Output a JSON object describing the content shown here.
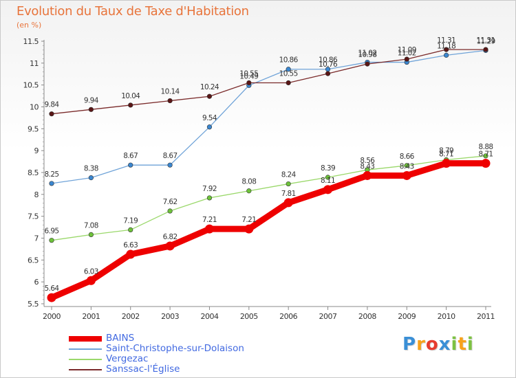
{
  "title": "Evolution du Taux de Taxe d'Habitation",
  "subtitle": "(en %)",
  "logo": {
    "text": "Proxiti",
    "letters": [
      {
        "ch": "P",
        "color": "#3a8fd6"
      },
      {
        "ch": "r",
        "color": "#f7a21b"
      },
      {
        "ch": "o",
        "color": "#e63c2f"
      },
      {
        "ch": "x",
        "color": "#3a8fd6"
      },
      {
        "ch": "i",
        "color": "#7dc242"
      },
      {
        "ch": "t",
        "color": "#f7a21b"
      },
      {
        "ch": "i",
        "color": "#7dc242"
      }
    ]
  },
  "chart_data": {
    "type": "line",
    "title": "Evolution du Taux de Taxe d'Habitation",
    "subtitle": "(en %)",
    "x": [
      "2000",
      "2001",
      "2002",
      "2003",
      "2004",
      "2005",
      "2006",
      "2007",
      "2008",
      "2009",
      "2010",
      "2011"
    ],
    "ylim": [
      5.5,
      11.5
    ],
    "yticks": [
      "5.5",
      "6",
      "6.5",
      "7",
      "7.5",
      "8",
      "8.5",
      "9",
      "9.5",
      "10",
      "10.5",
      "11",
      "11.5"
    ],
    "grid": false,
    "legend_position": "bottom-left",
    "series": [
      {
        "name": "BAINS",
        "color": "#ee0000",
        "marker_color": "#ee0000",
        "values": [
          5.64,
          6.03,
          6.63,
          6.82,
          7.21,
          7.21,
          7.81,
          8.11,
          8.43,
          8.43,
          8.71,
          8.71
        ],
        "labels": [
          "5.64",
          "6.03",
          "6.63",
          "6.82",
          "7.21",
          "7.21",
          "7.81",
          "8.11",
          "8.43",
          "8.43",
          "8.71",
          "8.71"
        ]
      },
      {
        "name": "Saint-Christophe-sur-Dolaison",
        "color": "#6fa3d8",
        "marker_color": "#3a86cf",
        "values": [
          8.25,
          8.38,
          8.67,
          8.67,
          9.54,
          10.49,
          10.86,
          10.86,
          11.02,
          11.02,
          11.18,
          11.29
        ],
        "labels": [
          "8.25",
          "8.38",
          "8.67",
          "8.67",
          "9.54",
          "10.49",
          "10.86",
          "10.86",
          "11.02",
          "11.02",
          "11.18",
          "11.29"
        ]
      },
      {
        "name": "Vergezac",
        "color": "#9ad86a",
        "marker_color": "#6dc23a",
        "values": [
          6.95,
          7.08,
          7.19,
          7.62,
          7.92,
          8.08,
          8.24,
          8.39,
          8.56,
          8.66,
          8.79,
          8.88
        ],
        "labels": [
          "6.95",
          "7.08",
          "7.19",
          "7.62",
          "7.92",
          "8.08",
          "8.24",
          "8.39",
          "8.56",
          "8.66",
          "8.79",
          "8.88"
        ]
      },
      {
        "name": "Sanssac-l'Église",
        "color": "#7a2a2a",
        "marker_color": "#5a1616",
        "values": [
          9.84,
          9.94,
          10.04,
          10.14,
          10.24,
          10.55,
          10.55,
          10.76,
          10.98,
          11.09,
          11.31,
          11.31
        ],
        "labels": [
          "9.84",
          "9.94",
          "10.04",
          "10.14",
          "10.24",
          "10.55",
          "10.55",
          "10.76",
          "10.98",
          "11.09",
          "11.31",
          "11.31"
        ]
      }
    ]
  }
}
